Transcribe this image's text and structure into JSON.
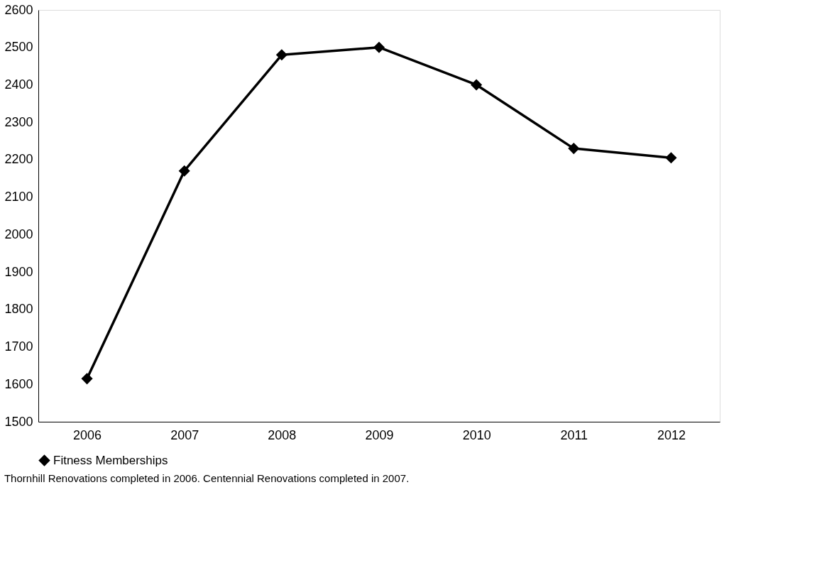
{
  "chart_data": {
    "type": "line",
    "categories": [
      "2006",
      "2007",
      "2008",
      "2009",
      "2010",
      "2011",
      "2012"
    ],
    "series": [
      {
        "name": "Fitness Memberships",
        "color": "#000000",
        "values": [
          1615,
          2170,
          2480,
          2500,
          2400,
          2230,
          2205
        ]
      }
    ],
    "ylim": [
      1500,
      2600
    ],
    "yticks": [
      1500,
      1600,
      1700,
      1800,
      1900,
      2000,
      2100,
      2200,
      2300,
      2400,
      2500,
      2600
    ],
    "grid": false,
    "legend": "bottom",
    "marker": "diamond",
    "line_style": "solid",
    "annotations": [
      "Thornhill Renovations completed in 2006.  Centennial Renovations completed in 2007."
    ]
  }
}
